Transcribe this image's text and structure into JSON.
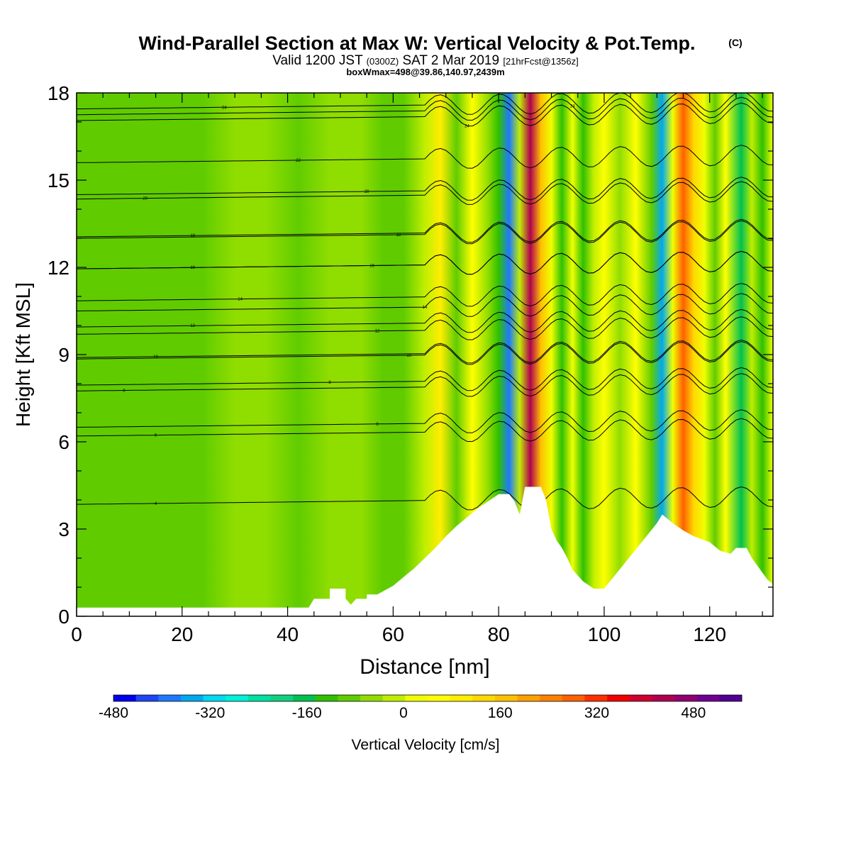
{
  "chart_data": {
    "type": "heatmap",
    "title": "Wind-Parallel Section at Max W: Vertical Velocity & Pot.Temp.",
    "title_mark": "(C)",
    "subtitle_prefix": "Valid 1200 JST",
    "subtitle_utc": "(0300Z)",
    "subtitle_date": "SAT 2 Mar 2019",
    "subtitle_fcst": "[21hrFcst@1356z]",
    "subtitle2": "boxWmax=498@39.86,140.97,2439m",
    "xlabel": "Distance [nm]",
    "ylabel": "Height [Kft MSL]",
    "xlim": [
      0,
      132
    ],
    "ylim": [
      0,
      18
    ],
    "x_ticks": [
      0,
      20,
      40,
      60,
      80,
      100,
      120
    ],
    "y_ticks": [
      0,
      3,
      6,
      9,
      12,
      15,
      18
    ],
    "colorbar": {
      "label": "Vertical Velocity [cm/s]",
      "min": -480,
      "max": 560,
      "step": 40,
      "tick_values": [
        "-480",
        "-320",
        "-160",
        "0",
        "160",
        "320",
        "480"
      ],
      "colors": [
        "#0000f0",
        "#1e46f5",
        "#1e78ff",
        "#00a8f0",
        "#00d8f0",
        "#00f0d8",
        "#00e0a0",
        "#10d080",
        "#00c050",
        "#30c000",
        "#60cc00",
        "#90dd00",
        "#c0ee00",
        "#f0ff00",
        "#ffff00",
        "#ffee00",
        "#ffd800",
        "#ffc000",
        "#ffa000",
        "#ff8000",
        "#ff6000",
        "#ff3000",
        "#f00000",
        "#d00030",
        "#b00050",
        "#900070",
        "#700090",
        "#500090"
      ]
    },
    "terrain_profile": [
      [
        0,
        0.3
      ],
      [
        44,
        0.3
      ],
      [
        45,
        0.6
      ],
      [
        48,
        0.6
      ],
      [
        48,
        0.95
      ],
      [
        51,
        0.95
      ],
      [
        51,
        0.6
      ],
      [
        52,
        0.4
      ],
      [
        53,
        0.6
      ],
      [
        55,
        0.6
      ],
      [
        55,
        0.75
      ],
      [
        57,
        0.75
      ],
      [
        60,
        1.05
      ],
      [
        62,
        1.35
      ],
      [
        64,
        1.65
      ],
      [
        66,
        2.0
      ],
      [
        68,
        2.35
      ],
      [
        70,
        2.75
      ],
      [
        72,
        3.1
      ],
      [
        74,
        3.4
      ],
      [
        76,
        3.7
      ],
      [
        78,
        3.95
      ],
      [
        80,
        4.2
      ],
      [
        82,
        4.2
      ],
      [
        83,
        3.95
      ],
      [
        84,
        3.5
      ],
      [
        85,
        4.45
      ],
      [
        88,
        4.45
      ],
      [
        89,
        4.0
      ],
      [
        90,
        3.0
      ],
      [
        91,
        2.6
      ],
      [
        92,
        2.35
      ],
      [
        93,
        2.0
      ],
      [
        94,
        1.6
      ],
      [
        96,
        1.2
      ],
      [
        98,
        0.95
      ],
      [
        100,
        0.95
      ],
      [
        102,
        1.4
      ],
      [
        104,
        1.85
      ],
      [
        106,
        2.3
      ],
      [
        108,
        2.75
      ],
      [
        110,
        3.2
      ],
      [
        111,
        3.5
      ],
      [
        113,
        3.2
      ],
      [
        115,
        2.95
      ],
      [
        117,
        2.75
      ],
      [
        120,
        2.55
      ],
      [
        122,
        2.25
      ],
      [
        124,
        2.15
      ],
      [
        125,
        2.35
      ],
      [
        127,
        2.35
      ],
      [
        128,
        2.0
      ],
      [
        129,
        1.75
      ],
      [
        130,
        1.5
      ],
      [
        131,
        1.25
      ],
      [
        132,
        1.1
      ]
    ],
    "w_field": [
      {
        "x": 0,
        "w": -80
      },
      {
        "x": 8,
        "w": -70
      },
      {
        "x": 16,
        "w": -75
      },
      {
        "x": 24,
        "w": -60
      },
      {
        "x": 30,
        "w": -35
      },
      {
        "x": 36,
        "w": -30
      },
      {
        "x": 42,
        "w": -45
      },
      {
        "x": 48,
        "w": -20
      },
      {
        "x": 54,
        "w": -40
      },
      {
        "x": 58,
        "w": -80
      },
      {
        "x": 62,
        "w": -60
      },
      {
        "x": 66,
        "w": 30
      },
      {
        "x": 69,
        "w": 120
      },
      {
        "x": 72,
        "w": -60
      },
      {
        "x": 75,
        "w": 100
      },
      {
        "x": 78,
        "w": -40
      },
      {
        "x": 80,
        "w": -120
      },
      {
        "x": 82,
        "w": -400
      },
      {
        "x": 84,
        "w": 0
      },
      {
        "x": 86,
        "w": 480
      },
      {
        "x": 88,
        "w": 200
      },
      {
        "x": 90,
        "w": 40
      },
      {
        "x": 92,
        "w": -100
      },
      {
        "x": 94,
        "w": 60
      },
      {
        "x": 96,
        "w": -120
      },
      {
        "x": 98,
        "w": 20
      },
      {
        "x": 100,
        "w": 80
      },
      {
        "x": 103,
        "w": -40
      },
      {
        "x": 106,
        "w": 90
      },
      {
        "x": 109,
        "w": -80
      },
      {
        "x": 111,
        "w": -340
      },
      {
        "x": 113,
        "w": 40
      },
      {
        "x": 115,
        "w": 320
      },
      {
        "x": 117,
        "w": 160
      },
      {
        "x": 119,
        "w": 40
      },
      {
        "x": 121,
        "w": -60
      },
      {
        "x": 123,
        "w": 80
      },
      {
        "x": 126,
        "w": -140
      },
      {
        "x": 128,
        "w": 20
      },
      {
        "x": 130,
        "w": -100
      },
      {
        "x": 132,
        "w": 40
      }
    ],
    "theta_contours": [
      {
        "label": "4",
        "label_x": 15,
        "y": 3.85
      },
      {
        "label": "6",
        "label_x": 15,
        "y": 6.2
      },
      {
        "label": "8",
        "label_x": 9,
        "y": 7.75
      },
      {
        "label": "8",
        "label_x": 48,
        "y": 7.95
      },
      {
        "label": "8",
        "label_x": 57,
        "y": 6.5
      },
      {
        "label": "10",
        "label_x": 15,
        "y": 8.9
      },
      {
        "label": "10",
        "label_x": 63,
        "y": 8.85
      },
      {
        "label": "12",
        "label_x": 57,
        "y": 9.7
      },
      {
        "label": "12",
        "label_x": 22,
        "y": 9.95
      },
      {
        "label": "14",
        "label_x": 31,
        "y": 10.85
      },
      {
        "label": "14",
        "label_x": 66,
        "y": 10.5
      },
      {
        "label": "16",
        "label_x": 22,
        "y": 11.95
      },
      {
        "label": "16",
        "label_x": 56,
        "y": 11.95
      },
      {
        "label": "18",
        "label_x": 22,
        "y": 13.05
      },
      {
        "label": "18",
        "label_x": 61,
        "y": 13.0
      },
      {
        "label": "20",
        "label_x": 13,
        "y": 14.35
      },
      {
        "label": "20",
        "label_x": 55,
        "y": 14.5
      },
      {
        "label": "22",
        "label_x": 42,
        "y": 15.6
      },
      {
        "label": "24",
        "label_x": 28,
        "y": 17.45
      },
      {
        "label": "24",
        "label_x": 74,
        "y": 17.05
      },
      {
        "label": "24",
        "label_x": 94,
        "y": 17.25
      }
    ],
    "grid": false
  }
}
